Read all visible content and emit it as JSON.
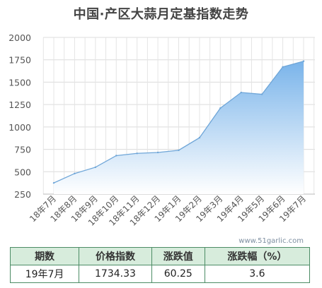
{
  "chart_data": {
    "type": "area",
    "title": "中国·产区大蒜月定基指数走势",
    "categories": [
      "18年7月",
      "18年8月",
      "18年9月",
      "18年10月",
      "18年11月",
      "18年12月",
      "19年1月",
      "19年2月",
      "19年3月",
      "19年4月",
      "19年5月",
      "19年6月",
      "19年7月"
    ],
    "values": [
      375,
      480,
      550,
      680,
      705,
      715,
      740,
      880,
      1210,
      1385,
      1365,
      1670,
      1734.33
    ],
    "ylim": [
      250,
      2000
    ],
    "yticks": [
      250,
      500,
      750,
      1000,
      1250,
      1500,
      1750,
      2000
    ],
    "grid": true,
    "line_color": "#6fa6d8",
    "fill_color_top": "#7ab4ea",
    "fill_color_bottom": "#ffffff"
  },
  "watermark": "www.51garlic.com",
  "summary_table": {
    "headers": [
      "期数",
      "价格指数",
      "涨跌值",
      "涨跌幅（%）"
    ],
    "row": [
      "19年7月",
      "1734.33",
      "60.25",
      "3.6"
    ]
  }
}
